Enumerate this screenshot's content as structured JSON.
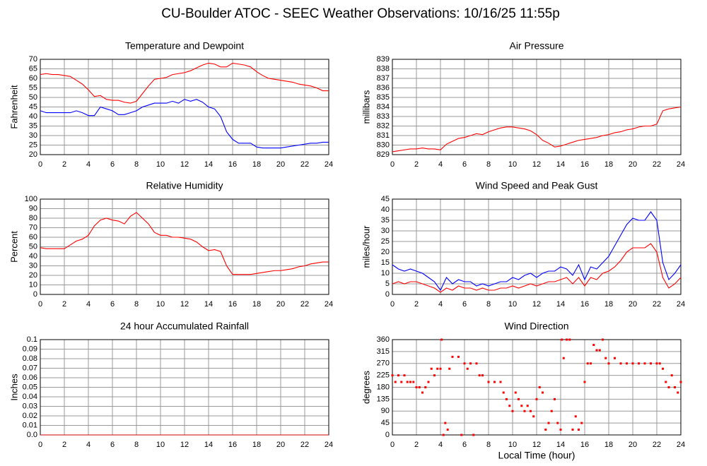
{
  "title": "CU-Boulder ATOC - SEEC Weather Observations: 10/16/25 11:55p",
  "chart_data": [
    {
      "type": "line",
      "title": "Temperature and Dewpoint",
      "y_label": "Fahrenheit",
      "x": [
        0,
        0.5,
        1,
        1.5,
        2,
        2.5,
        3,
        3.5,
        4,
        4.5,
        5,
        5.5,
        6,
        6.5,
        7,
        7.5,
        8,
        8.5,
        9,
        9.5,
        10,
        10.5,
        11,
        11.5,
        12,
        12.5,
        13,
        13.5,
        14,
        14.5,
        15,
        15.5,
        16,
        16.5,
        17,
        17.5,
        18,
        18.5,
        19,
        19.5,
        20,
        20.5,
        21,
        21.5,
        22,
        22.5,
        23,
        23.5,
        24
      ],
      "series": [
        {
          "color": "#ff0000",
          "values": [
            62,
            62.5,
            62,
            62,
            61.5,
            61,
            59,
            57,
            54,
            50.5,
            51,
            49,
            48.5,
            48.5,
            47.5,
            47,
            48,
            52,
            56,
            59.5,
            60,
            60.5,
            62,
            62.5,
            63,
            64,
            65.5,
            67,
            68,
            67.5,
            66,
            66,
            68,
            67.5,
            67,
            66,
            63.5,
            61.5,
            60,
            59.5,
            59,
            58.5,
            58,
            57,
            56.5,
            56,
            55,
            53.5,
            53.5
          ]
        },
        {
          "color": "#0000ff",
          "values": [
            43,
            42,
            42,
            42,
            42,
            42,
            43,
            42,
            40.5,
            40.5,
            45,
            44,
            43,
            41,
            41,
            42,
            43,
            45,
            46,
            47,
            47,
            47,
            48,
            47,
            49,
            48,
            49,
            47.5,
            45,
            44,
            40,
            32,
            28,
            26,
            26,
            26,
            24,
            23.5,
            23.5,
            23.5,
            23.5,
            24,
            24.5,
            25,
            25.5,
            26,
            26,
            26.5,
            26.5
          ]
        }
      ],
      "xlim": [
        0,
        24
      ],
      "xticks": [
        0,
        2,
        4,
        6,
        8,
        10,
        12,
        14,
        16,
        18,
        20,
        22,
        24
      ],
      "ylim": [
        20,
        70
      ],
      "yticks": [
        20,
        25,
        30,
        35,
        40,
        45,
        50,
        55,
        60,
        65,
        70
      ],
      "grid": true
    },
    {
      "type": "line",
      "title": "Air Pressure",
      "y_label": "millibars",
      "x": [
        0,
        0.5,
        1,
        1.5,
        2,
        2.5,
        3,
        3.5,
        4,
        4.5,
        5,
        5.5,
        6,
        6.5,
        7,
        7.5,
        8,
        8.5,
        9,
        9.5,
        10,
        10.5,
        11,
        11.5,
        12,
        12.5,
        13,
        13.5,
        14,
        14.5,
        15,
        15.5,
        16,
        16.5,
        17,
        17.5,
        18,
        18.5,
        19,
        19.5,
        20,
        20.5,
        21,
        21.5,
        22,
        22.5,
        23,
        23.5,
        24
      ],
      "series": [
        {
          "color": "#ff0000",
          "values": [
            829.3,
            829.4,
            829.5,
            829.6,
            829.6,
            829.7,
            829.6,
            829.6,
            829.5,
            830.1,
            830.4,
            830.7,
            830.8,
            831,
            831.2,
            831.1,
            831.4,
            831.6,
            831.8,
            831.9,
            831.9,
            831.8,
            831.7,
            831.5,
            831.1,
            830.5,
            830.2,
            829.8,
            829.9,
            830.1,
            830.3,
            830.5,
            830.6,
            830.7,
            830.8,
            831,
            831.1,
            831.3,
            831.4,
            831.6,
            831.7,
            831.9,
            832,
            832,
            832.2,
            833.6,
            833.8,
            833.9,
            834
          ]
        }
      ],
      "xlim": [
        0,
        24
      ],
      "xticks": [
        0,
        2,
        4,
        6,
        8,
        10,
        12,
        14,
        16,
        18,
        20,
        22,
        24
      ],
      "ylim": [
        829,
        839
      ],
      "yticks": [
        829,
        830,
        831,
        832,
        833,
        834,
        835,
        836,
        837,
        838,
        839
      ],
      "grid": true
    },
    {
      "type": "line",
      "title": "Relative Humidity",
      "y_label": "Percent",
      "x": [
        0,
        0.5,
        1,
        1.5,
        2,
        2.5,
        3,
        3.5,
        4,
        4.5,
        5,
        5.5,
        6,
        6.5,
        7,
        7.5,
        8,
        8.5,
        9,
        9.5,
        10,
        10.5,
        11,
        11.5,
        12,
        12.5,
        13,
        13.5,
        14,
        14.5,
        15,
        15.5,
        16,
        16.5,
        17,
        17.5,
        18,
        18.5,
        19,
        19.5,
        20,
        20.5,
        21,
        21.5,
        22,
        22.5,
        23,
        23.5,
        24
      ],
      "series": [
        {
          "color": "#ff0000",
          "values": [
            49,
            48,
            48,
            48,
            48,
            52,
            56,
            58,
            62,
            72,
            78,
            80,
            78,
            77,
            74,
            82,
            86,
            80,
            74,
            65,
            62,
            62,
            60,
            60,
            59,
            58,
            55,
            50,
            46,
            47,
            45,
            30,
            21,
            21,
            21,
            21,
            22,
            23,
            24,
            25,
            25,
            26,
            27,
            29,
            30,
            32,
            33,
            34,
            34
          ]
        }
      ],
      "xlim": [
        0,
        24
      ],
      "xticks": [
        0,
        2,
        4,
        6,
        8,
        10,
        12,
        14,
        16,
        18,
        20,
        22,
        24
      ],
      "ylim": [
        0,
        100
      ],
      "yticks": [
        0,
        10,
        20,
        30,
        40,
        50,
        60,
        70,
        80,
        90,
        100
      ],
      "grid": true
    },
    {
      "type": "line",
      "title": "Wind Speed and Peak Gust",
      "y_label": "miles/hour",
      "x": [
        0,
        0.5,
        1,
        1.5,
        2,
        2.5,
        3,
        3.5,
        4,
        4.5,
        5,
        5.5,
        6,
        6.5,
        7,
        7.5,
        8,
        8.5,
        9,
        9.5,
        10,
        10.5,
        11,
        11.5,
        12,
        12.5,
        13,
        13.5,
        14,
        14.5,
        15,
        15.5,
        16,
        16.5,
        17,
        17.5,
        18,
        18.5,
        19,
        19.5,
        20,
        20.5,
        21,
        21.5,
        22,
        22.5,
        23,
        23.5,
        24
      ],
      "series": [
        {
          "color": "#0000ff",
          "values": [
            14,
            12,
            11,
            12,
            11,
            10,
            8,
            6,
            2,
            8,
            5,
            7,
            6,
            6,
            4,
            5,
            4,
            5,
            6,
            6,
            8,
            7,
            9,
            10,
            8,
            10,
            11,
            11,
            13,
            12,
            9,
            14,
            7,
            13,
            12,
            15,
            18,
            23,
            28,
            33,
            36,
            35,
            35,
            39,
            35,
            15,
            7,
            10,
            14
          ]
        },
        {
          "color": "#ff0000",
          "values": [
            5,
            6,
            5,
            6,
            6,
            5,
            4,
            3,
            1,
            3,
            2,
            4,
            3,
            3,
            2,
            3,
            2,
            2,
            3,
            3,
            4,
            3,
            4,
            5,
            4,
            5,
            6,
            6,
            7,
            8,
            5,
            8,
            4,
            8,
            7,
            10,
            11,
            13,
            16,
            20,
            22,
            22,
            22,
            24,
            20,
            8,
            3,
            5,
            8
          ]
        }
      ],
      "xlim": [
        0,
        24
      ],
      "xticks": [
        0,
        2,
        4,
        6,
        8,
        10,
        12,
        14,
        16,
        18,
        20,
        22,
        24
      ],
      "ylim": [
        0,
        45
      ],
      "yticks": [
        0,
        5,
        10,
        15,
        20,
        25,
        30,
        35,
        40,
        45
      ],
      "grid": true
    },
    {
      "type": "line",
      "title": "24 hour Accumulated Rainfall",
      "y_label": "Inches",
      "x": [
        0,
        24
      ],
      "series": [
        {
          "color": "#cc0000",
          "values": [
            0,
            0
          ]
        }
      ],
      "xlim": [
        0,
        24
      ],
      "xticks": [
        0,
        2,
        4,
        6,
        8,
        10,
        12,
        14,
        16,
        18,
        20,
        22,
        24
      ],
      "ylim": [
        0,
        0.1
      ],
      "yticks": [
        {
          "value": 0,
          "label": "0.0"
        },
        0.01,
        0.02,
        0.03,
        0.04,
        0.05,
        0.06,
        0.07,
        0.08,
        0.09,
        0.1
      ],
      "grid": true
    },
    {
      "type": "scatter",
      "title": "Wind Direction",
      "y_label": "degrees",
      "x_label": "Local Time (hour)",
      "color": "#ff0000",
      "x": [
        0,
        0.25,
        0.5,
        0.75,
        1,
        1.25,
        1.5,
        1.75,
        2,
        2.25,
        2.5,
        2.75,
        3,
        3.25,
        3.5,
        3.75,
        4,
        4.1,
        4.25,
        4.4,
        4.6,
        4.75,
        5,
        5.5,
        5.75,
        6,
        6.25,
        6.5,
        6.75,
        7,
        7.25,
        7.5,
        8,
        8.5,
        9,
        9.25,
        9.5,
        9.75,
        10,
        10.25,
        10.5,
        10.75,
        11,
        11.25,
        11.5,
        11.75,
        12,
        12.25,
        12.5,
        12.75,
        13,
        13.25,
        13.5,
        13.75,
        14,
        14.1,
        14.25,
        14.5,
        14.75,
        15,
        15.25,
        15.5,
        15.75,
        16,
        16.25,
        16.5,
        16.75,
        17,
        17.25,
        17.5,
        17.75,
        18,
        18.5,
        19,
        19.5,
        20,
        20.5,
        21,
        21.5,
        22,
        22.25,
        22.5,
        22.75,
        23,
        23.25,
        23.5,
        23.75,
        24
      ],
      "values": [
        225,
        200,
        225,
        200,
        225,
        200,
        200,
        200,
        180,
        180,
        160,
        180,
        200,
        250,
        225,
        250,
        250,
        360,
        0,
        45,
        20,
        250,
        295,
        295,
        0,
        270,
        250,
        270,
        0,
        270,
        225,
        225,
        200,
        200,
        200,
        160,
        135,
        110,
        90,
        160,
        135,
        110,
        90,
        110,
        90,
        70,
        135,
        180,
        160,
        20,
        45,
        90,
        135,
        45,
        20,
        360,
        290,
        360,
        360,
        20,
        70,
        20,
        45,
        200,
        270,
        270,
        340,
        320,
        320,
        360,
        290,
        270,
        290,
        270,
        270,
        270,
        270,
        270,
        270,
        270,
        270,
        250,
        200,
        180,
        225,
        180,
        160,
        200
      ],
      "xlim": [
        0,
        24
      ],
      "xticks": [
        0,
        2,
        4,
        6,
        8,
        10,
        12,
        14,
        16,
        18,
        20,
        22,
        24
      ],
      "ylim": [
        0,
        360
      ],
      "yticks": [
        0,
        45,
        90,
        135,
        180,
        225,
        270,
        315,
        360
      ],
      "grid": true
    }
  ]
}
